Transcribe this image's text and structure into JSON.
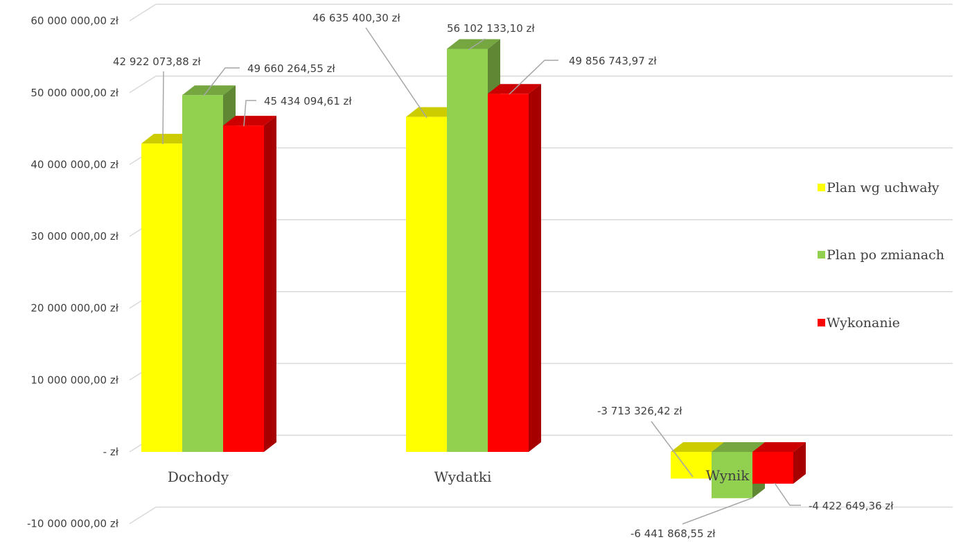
{
  "chart_data": {
    "type": "bar",
    "categories": [
      "Dochody",
      "Wydatki",
      "Wynik"
    ],
    "series": [
      {
        "name": "Plan wg uchwały",
        "color": "#ffff00",
        "values": [
          42922073.88,
          46635400.3,
          -3713326.42
        ],
        "labels": [
          "42 922 073,88 zł",
          "46 635 400,30 zł",
          "-3 713 326,42 zł"
        ]
      },
      {
        "name": "Plan po zmianach",
        "color": "#92d050",
        "values": [
          49660264.55,
          56102133.1,
          -6441868.55
        ],
        "labels": [
          "49 660 264,55 zł",
          "56 102 133,10 zł",
          "-6 441 868,55 zł"
        ]
      },
      {
        "name": "Wykonanie",
        "color": "#ff0000",
        "values": [
          45434094.61,
          49856743.97,
          -4422649.36
        ],
        "labels": [
          "45 434 094,61 zł",
          "49 856 743,97 zł",
          "-4 422 649,36 zł"
        ]
      }
    ],
    "y_ticks": [
      {
        "value": 60000000,
        "label": "60 000 000,00 zł"
      },
      {
        "value": 50000000,
        "label": "50 000 000,00 zł"
      },
      {
        "value": 40000000,
        "label": "40 000 000,00 zł"
      },
      {
        "value": 30000000,
        "label": "30 000 000,00 zł"
      },
      {
        "value": 20000000,
        "label": "20 000 000,00 zł"
      },
      {
        "value": 10000000,
        "label": "10 000 000,00 zł"
      },
      {
        "value": 0,
        "label": "-   zł"
      },
      {
        "value": -10000000,
        "label": "-10 000 000,00 zł"
      }
    ],
    "ylim": [
      -10000000,
      60000000
    ],
    "grid": true,
    "legend_position": "right",
    "style": "3d-column",
    "title": "",
    "xlabel": "",
    "ylabel": ""
  }
}
